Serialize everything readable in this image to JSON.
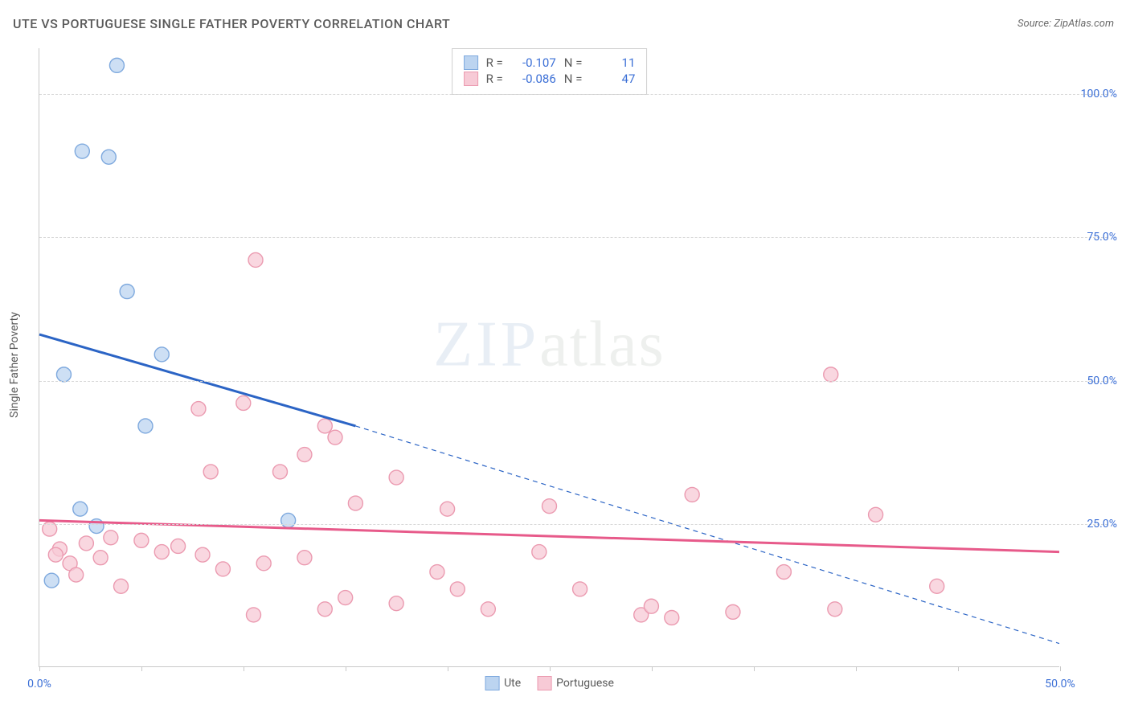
{
  "header": {
    "title": "UTE VS PORTUGUESE SINGLE FATHER POVERTY CORRELATION CHART",
    "source_prefix": "Source: ",
    "source_name": "ZipAtlas.com"
  },
  "yaxis": {
    "label": "Single Father Poverty"
  },
  "watermark": {
    "zip": "ZIP",
    "atlas": "atlas"
  },
  "chart": {
    "type": "scatter",
    "xlim": [
      0,
      50
    ],
    "ylim": [
      0,
      108
    ],
    "y_ticks": [
      25,
      50,
      75,
      100
    ],
    "y_tick_labels": [
      "25.0%",
      "50.0%",
      "75.0%",
      "100.0%"
    ],
    "x_ticks": [
      0,
      5,
      10,
      15,
      20,
      25,
      30,
      35,
      40,
      45,
      50
    ],
    "x_tick_labels": {
      "0": "0.0%",
      "50": "50.0%"
    },
    "background_color": "#ffffff",
    "grid_color": "#d8d8d8",
    "axis_color": "#c8c8c8",
    "marker_radius": 9,
    "marker_stroke_width": 1.4,
    "line_width_solid": 3,
    "line_width_dashed": 1.2,
    "dash_pattern": "6,5",
    "series": {
      "ute": {
        "label": "Ute",
        "fill": "#bcd4f0",
        "stroke": "#7ea9de",
        "line_color": "#2b64c5",
        "R": "-0.107",
        "N": "11",
        "points": [
          [
            3.8,
            105.0
          ],
          [
            2.1,
            90.0
          ],
          [
            3.4,
            89.0
          ],
          [
            4.3,
            65.5
          ],
          [
            1.2,
            51.0
          ],
          [
            6.0,
            54.5
          ],
          [
            5.2,
            42.0
          ],
          [
            2.0,
            27.5
          ],
          [
            2.8,
            24.5
          ],
          [
            0.6,
            15.0
          ],
          [
            12.2,
            25.5
          ]
        ],
        "trend_solid": {
          "x1": 0,
          "y1": 58.0,
          "x2": 15.5,
          "y2": 42.0
        },
        "trend_dashed": {
          "x1": 15.5,
          "y1": 42.0,
          "x2": 50.0,
          "y2": 4.0
        }
      },
      "portuguese": {
        "label": "Portuguese",
        "fill": "#f7cad6",
        "stroke": "#eb9ab0",
        "line_color": "#e75a8a",
        "R": "-0.086",
        "N": "47",
        "points": [
          [
            10.6,
            71.0
          ],
          [
            38.8,
            51.0
          ],
          [
            10.0,
            46.0
          ],
          [
            7.8,
            45.0
          ],
          [
            14.0,
            42.0
          ],
          [
            14.5,
            40.0
          ],
          [
            13.0,
            37.0
          ],
          [
            8.4,
            34.0
          ],
          [
            11.8,
            34.0
          ],
          [
            17.5,
            33.0
          ],
          [
            15.5,
            28.5
          ],
          [
            32.0,
            30.0
          ],
          [
            25.0,
            28.0
          ],
          [
            20.0,
            27.5
          ],
          [
            41.0,
            26.5
          ],
          [
            0.5,
            24.0
          ],
          [
            1.0,
            20.5
          ],
          [
            1.5,
            18.0
          ],
          [
            2.3,
            21.5
          ],
          [
            3.0,
            19.0
          ],
          [
            3.5,
            22.5
          ],
          [
            4.0,
            14.0
          ],
          [
            5.0,
            22.0
          ],
          [
            6.0,
            20.0
          ],
          [
            6.8,
            21.0
          ],
          [
            8.0,
            19.5
          ],
          [
            9.0,
            17.0
          ],
          [
            11.0,
            18.0
          ],
          [
            13.0,
            19.0
          ],
          [
            24.5,
            20.0
          ],
          [
            19.5,
            16.5
          ],
          [
            36.5,
            16.5
          ],
          [
            44.0,
            14.0
          ],
          [
            14.0,
            10.0
          ],
          [
            15.0,
            12.0
          ],
          [
            17.5,
            11.0
          ],
          [
            20.5,
            13.5
          ],
          [
            22.0,
            10.0
          ],
          [
            26.5,
            13.5
          ],
          [
            29.5,
            9.0
          ],
          [
            30.0,
            10.5
          ],
          [
            31.0,
            8.5
          ],
          [
            34.0,
            9.5
          ],
          [
            39.0,
            10.0
          ],
          [
            10.5,
            9.0
          ],
          [
            0.8,
            19.5
          ],
          [
            1.8,
            16.0
          ]
        ],
        "trend_solid": {
          "x1": 0,
          "y1": 25.5,
          "x2": 50.0,
          "y2": 20.0
        }
      }
    }
  },
  "legend_top": {
    "R_label": "R =",
    "N_label": "N ="
  },
  "legend_bottom": {
    "items": [
      "ute",
      "portuguese"
    ]
  }
}
